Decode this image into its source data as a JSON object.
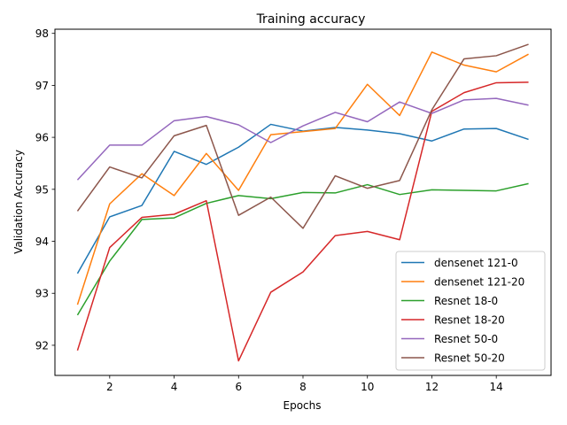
{
  "chart_data": {
    "type": "line",
    "title": "Training accuracy",
    "xlabel": "Epochs",
    "ylabel": "Validation Accuracy",
    "xlim": [
      0.3,
      15.7
    ],
    "ylim": [
      91.42,
      98.08
    ],
    "xticks": [
      2,
      4,
      6,
      8,
      10,
      12,
      14
    ],
    "yticks": [
      92,
      93,
      94,
      95,
      96,
      97,
      98
    ],
    "grid": false,
    "legend_position": "lower right",
    "x": [
      1,
      2,
      3,
      4,
      5,
      6,
      7,
      8,
      9,
      10,
      11,
      12,
      13,
      14,
      15
    ],
    "series": [
      {
        "name": "densenet 121-0",
        "color": "#1f77b4",
        "values": [
          93.38,
          94.47,
          94.69,
          95.73,
          95.48,
          95.81,
          96.25,
          96.12,
          96.19,
          96.14,
          96.07,
          95.93,
          96.16,
          96.17,
          95.96
        ]
      },
      {
        "name": "densenet 121-20",
        "color": "#ff7f0e",
        "values": [
          92.78,
          94.72,
          95.3,
          94.88,
          95.69,
          94.98,
          96.05,
          96.11,
          96.17,
          97.02,
          96.42,
          97.64,
          97.39,
          97.26,
          97.6
        ]
      },
      {
        "name": "Resnet 18-0",
        "color": "#2ca02c",
        "values": [
          92.58,
          93.62,
          94.42,
          94.45,
          94.73,
          94.88,
          94.82,
          94.94,
          94.93,
          95.09,
          94.9,
          94.99,
          94.98,
          94.97,
          95.11
        ]
      },
      {
        "name": "Resnet 18-20",
        "color": "#d62728",
        "values": [
          91.9,
          93.88,
          94.46,
          94.52,
          94.78,
          91.7,
          93.02,
          93.41,
          94.11,
          94.19,
          94.03,
          96.5,
          96.86,
          97.05,
          97.06
        ]
      },
      {
        "name": "Resnet 50-0",
        "color": "#9467bd",
        "values": [
          95.18,
          95.85,
          95.85,
          96.32,
          96.4,
          96.24,
          95.9,
          96.22,
          96.48,
          96.3,
          96.68,
          96.46,
          96.72,
          96.75,
          96.62
        ]
      },
      {
        "name": "Resnet 50-20",
        "color": "#8c564b",
        "values": [
          94.58,
          95.43,
          95.22,
          96.03,
          96.23,
          94.5,
          94.85,
          94.25,
          95.26,
          95.02,
          95.17,
          96.53,
          97.51,
          97.57,
          97.79
        ]
      }
    ]
  }
}
